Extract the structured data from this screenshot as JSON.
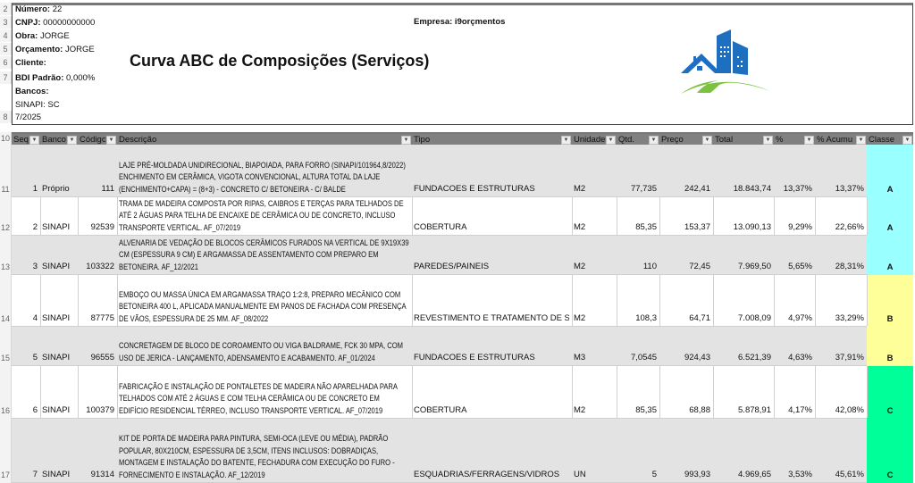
{
  "header": {
    "numero_label": "Número:",
    "numero": "22",
    "cnpj_label": "CNPJ:",
    "cnpj": "00000000000",
    "obra_label": "Obra:",
    "obra": "JORGE",
    "orcamento_label": "Orçamento:",
    "orcamento": "JORGE",
    "cliente_label": "Cliente:",
    "bdi_label": "BDI Padrão:",
    "bdi": "0,000%",
    "bancos_label": "Bancos:",
    "sinapi": "SINAPI: SC",
    "data": "7/2025",
    "empresa": "Empresa: i9orçmentos",
    "title": "Curva ABC de Composições (Serviços)"
  },
  "row_numbers": [
    "2",
    "3",
    "4",
    "5",
    "6",
    "7",
    "8",
    "10",
    "11",
    "12",
    "13",
    "14",
    "15",
    "16",
    "17"
  ],
  "columns": [
    "Seq",
    "Banco",
    "Código",
    "Descrição",
    "Tipo",
    "Unidade",
    "Qtd.",
    "Preço",
    "Total",
    "%",
    "% Acumu",
    "Classe"
  ],
  "class_colors": {
    "A": "#99ffff",
    "B": "#ffff99",
    "C": "#00ff99"
  },
  "rows": [
    {
      "seq": "1",
      "banco": "Próprio",
      "codigo": "111",
      "descricao": "LAJE PRÉ-MOLDADA UNIDIRECIONAL, BIAPOIADA, PARA FORRO (SINAPI/101964,8/2022) ENCHIMENTO EM CERÂMICA, VIGOTA CONVENCIONAL, ALTURA TOTAL DA LAJE (ENCHIMENTO+CAPA) = (8+3) - CONCRETO C/ BETONEIRA - C/ BALDE",
      "tipo": "FUNDACOES E ESTRUTURAS",
      "unidade": "M2",
      "qtd": "77,735",
      "preco": "242,41",
      "total": "18.843,74",
      "pct": "13,37%",
      "acum": "13,37%",
      "classe": "A"
    },
    {
      "seq": "2",
      "banco": "SINAPI",
      "codigo": "92539",
      "descricao": "TRAMA DE MADEIRA COMPOSTA POR RIPAS, CAIBROS E TERÇAS PARA TELHADOS DE ATÉ 2 ÁGUAS PARA TELHA DE ENCAIXE DE CERÂMICA OU DE CONCRETO, INCLUSO TRANSPORTE VERTICAL. AF_07/2019",
      "tipo": "COBERTURA",
      "unidade": "M2",
      "qtd": "85,35",
      "preco": "153,37",
      "total": "13.090,13",
      "pct": "9,29%",
      "acum": "22,66%",
      "classe": "A"
    },
    {
      "seq": "3",
      "banco": "SINAPI",
      "codigo": "103322",
      "descricao": "ALVENARIA DE VEDAÇÃO DE BLOCOS CERÂMICOS FURADOS NA VERTICAL DE 9X19X39 CM (ESPESSURA 9 CM) E ARGAMASSA DE ASSENTAMENTO COM PREPARO EM BETONEIRA. AF_12/2021",
      "tipo": "PAREDES/PAINEIS",
      "unidade": "M2",
      "qtd": "110",
      "preco": "72,45",
      "total": "7.969,50",
      "pct": "5,65%",
      "acum": "28,31%",
      "classe": "A"
    },
    {
      "seq": "4",
      "banco": "SINAPI",
      "codigo": "87775",
      "descricao": "EMBOÇO OU MASSA ÚNICA EM ARGAMASSA TRAÇO 1:2:8, PREPARO MECÂNICO COM BETONEIRA 400 L, APLICADA MANUALMENTE EM PANOS DE FACHADA COM PRESENÇA DE VÃOS, ESPESSURA DE 25 MM. AF_08/2022",
      "tipo": "REVESTIMENTO E TRATAMENTO DE SUPI",
      "unidade": "M2",
      "qtd": "108,3",
      "preco": "64,71",
      "total": "7.008,09",
      "pct": "4,97%",
      "acum": "33,29%",
      "classe": "B"
    },
    {
      "seq": "5",
      "banco": "SINAPI",
      "codigo": "96555",
      "descricao": "CONCRETAGEM DE BLOCO DE COROAMENTO OU VIGA BALDRAME, FCK 30 MPA, COM USO DE JERICA - LANÇAMENTO, ADENSAMENTO E ACABAMENTO. AF_01/2024",
      "tipo": "FUNDACOES E ESTRUTURAS",
      "unidade": "M3",
      "qtd": "7,0545",
      "preco": "924,43",
      "total": "6.521,39",
      "pct": "4,63%",
      "acum": "37,91%",
      "classe": "B"
    },
    {
      "seq": "6",
      "banco": "SINAPI",
      "codigo": "100379",
      "descricao": "FABRICAÇÃO E INSTALAÇÃO DE PONTALETES DE MADEIRA NÃO APARELHADA PARA TELHADOS COM ATÉ 2 ÁGUAS E COM TELHA CERÂMICA OU DE CONCRETO EM EDIFÍCIO RESIDENCIAL TÉRREO, INCLUSO TRANSPORTE VERTICAL. AF_07/2019",
      "tipo": "COBERTURA",
      "unidade": "M2",
      "qtd": "85,35",
      "preco": "68,88",
      "total": "5.878,91",
      "pct": "4,17%",
      "acum": "42,08%",
      "classe": "C"
    },
    {
      "seq": "7",
      "banco": "SINAPI",
      "codigo": "91314",
      "descricao": "KIT DE PORTA DE MADEIRA PARA PINTURA, SEMI-OCA (LEVE OU MÉDIA), PADRÃO POPULAR, 80X210CM, ESPESSURA DE 3,5CM, ITENS INCLUSOS: DOBRADIÇAS, MONTAGEM E INSTALAÇÃO DO BATENTE, FECHADURA COM EXECUÇÃO DO FURO - FORNECIMENTO E INSTALAÇÃO. AF_12/2019",
      "tipo": "ESQUADRIAS/FERRAGENS/VIDROS",
      "unidade": "UN",
      "qtd": "5",
      "preco": "993,93",
      "total": "4.969,65",
      "pct": "3,53%",
      "acum": "45,61%",
      "classe": "C"
    }
  ]
}
